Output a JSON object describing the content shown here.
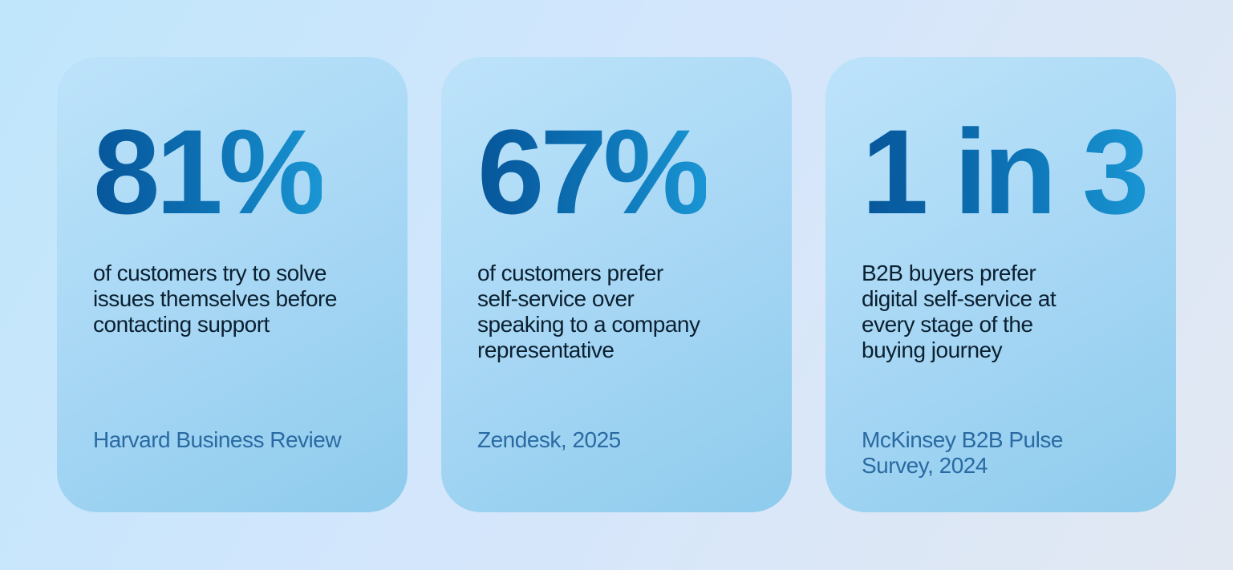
{
  "cards": [
    {
      "stat": "81%",
      "description": [
        "of customers try to solve",
        "issues themselves before",
        "contacting support"
      ],
      "source": [
        "Harvard Business Review"
      ]
    },
    {
      "stat": "67%",
      "description": [
        "of customers prefer",
        "self-service over",
        "speaking to a company",
        "representative"
      ],
      "source": [
        "Zendesk, 2025"
      ]
    },
    {
      "stat": "1 in 3",
      "description": [
        "B2B buyers prefer",
        "digital self-service at",
        "every stage of the",
        "buying journey"
      ],
      "source": [
        "McKinsey B2B Pulse",
        "Survey, 2024"
      ]
    }
  ]
}
